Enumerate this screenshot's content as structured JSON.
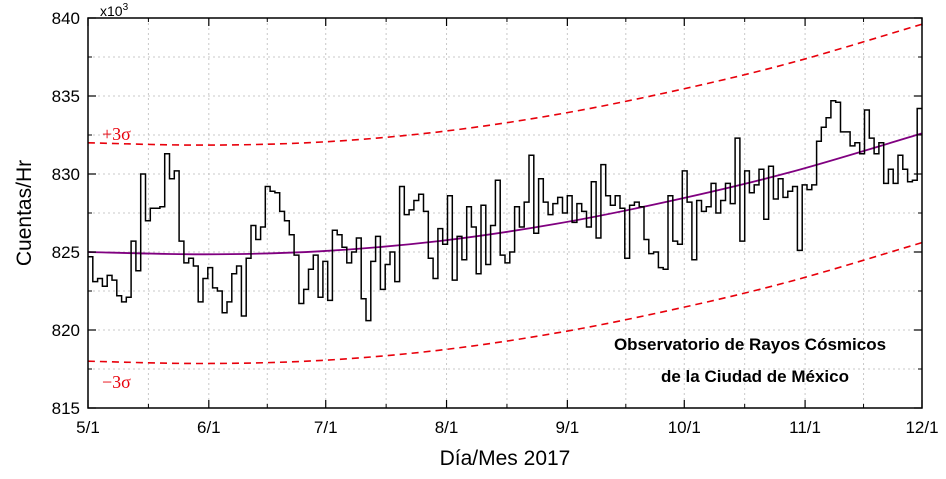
{
  "chart_data": {
    "type": "line",
    "title": "",
    "xlabel": "Día/Mes 2017",
    "ylabel": "Cuentas/Hr",
    "y_multiplier": "x10",
    "y_multiplier_exp": "3",
    "x_tick_labels": [
      "5/1",
      "6/1",
      "7/1",
      "8/1",
      "9/1",
      "10/1",
      "11/1",
      "12/1"
    ],
    "x_tick_days": [
      0,
      31,
      61,
      92,
      123,
      153,
      184,
      214
    ],
    "xlim_days": [
      0,
      214
    ],
    "ylim": [
      815,
      840
    ],
    "y_ticks": [
      815,
      820,
      825,
      830,
      835,
      840
    ],
    "grid": true,
    "upper_sigma_label": "+3σ",
    "lower_sigma_label": "−3σ",
    "annotation": [
      "Observatorio de Rayos Cósmicos",
      "de la Ciudad de México"
    ],
    "colors": {
      "data": "#000000",
      "fit": "#800080",
      "sigma": "#e8000b"
    },
    "counts_series": {
      "name": "",
      "step": "daily",
      "values": [
        824.7,
        823.1,
        823.3,
        822.8,
        823.5,
        823.2,
        822.2,
        821.8,
        822.1,
        825.7,
        823.8,
        830.0,
        827.0,
        827.8,
        827.8,
        827.9,
        831.3,
        829.7,
        830.2,
        825.7,
        824.3,
        824.6,
        824.1,
        821.8,
        823.3,
        824.0,
        822.7,
        822.5,
        821.1,
        821.8,
        823.6,
        824.1,
        820.9,
        824.6,
        826.7,
        825.8,
        826.6,
        829.2,
        828.9,
        828.8,
        827.6,
        827.0,
        826.1,
        824.8,
        821.7,
        822.6,
        823.9,
        824.8,
        822.1,
        824.4,
        821.9,
        826.4,
        826.1,
        825.3,
        824.3,
        825.0,
        825.9,
        822.0,
        820.6,
        824.4,
        826.0,
        822.6,
        824.2,
        825.0,
        823.1,
        829.2,
        827.4,
        827.7,
        828.3,
        828.7,
        827.6,
        824.6,
        823.3,
        826.5,
        825.5,
        828.6,
        823.2,
        826.0,
        824.5,
        827.9,
        826.6,
        823.6,
        828.0,
        824.2,
        826.7,
        829.6,
        824.8,
        824.3,
        825.0,
        827.9,
        826.6,
        828.2,
        831.2,
        826.2,
        829.7,
        828.2,
        827.4,
        828.1,
        828.5,
        827.5,
        828.6,
        826.9,
        828.1,
        827.6,
        826.6,
        829.5,
        825.9,
        830.6,
        828.6,
        828.0,
        828.6,
        827.8,
        824.6,
        828.0,
        828.2,
        827.9,
        825.8,
        824.9,
        825.0,
        824.0,
        823.9,
        828.6,
        825.7,
        825.5,
        830.2,
        828.2,
        824.5,
        828.3,
        827.6,
        827.9,
        829.4,
        827.5,
        828.3,
        829.4,
        828.1,
        832.3,
        825.7,
        830.2,
        828.8,
        829.3,
        830.3,
        827.1,
        830.5,
        828.4,
        829.7,
        828.5,
        828.9,
        829.2,
        825.1,
        829.3,
        829.0,
        829.3,
        832.1,
        833.0,
        833.6,
        834.7,
        834.6,
        832.7,
        832.7,
        831.8,
        832.0,
        831.3,
        834.1,
        832.3,
        831.3,
        832.0,
        829.4,
        830.3,
        829.4,
        831.2,
        830.3,
        829.5,
        829.6,
        834.2
      ]
    },
    "fit_curve": {
      "name": "",
      "type": "quadratic",
      "x_days": [
        0,
        30,
        60,
        90,
        120,
        150,
        180,
        214
      ],
      "values": [
        825.0,
        824.85,
        825.05,
        825.7,
        826.8,
        828.3,
        830.1,
        832.6
      ]
    },
    "upper_3sigma": {
      "name": "",
      "x_days": [
        0,
        30,
        60,
        90,
        120,
        150,
        180,
        214
      ],
      "values": [
        832.0,
        831.85,
        832.05,
        832.7,
        833.8,
        835.3,
        837.1,
        839.6
      ]
    },
    "lower_3sigma": {
      "name": "",
      "x_days": [
        0,
        30,
        60,
        90,
        120,
        150,
        180,
        214
      ],
      "values": [
        818.0,
        817.85,
        818.05,
        818.7,
        819.8,
        821.3,
        823.1,
        825.6
      ]
    }
  }
}
